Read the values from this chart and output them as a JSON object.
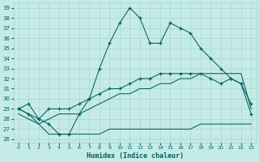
{
  "xlabel": "Humidex (Indice chaleur)",
  "xlim": [
    -0.5,
    23.5
  ],
  "ylim": [
    25.7,
    39.5
  ],
  "yticks": [
    26,
    27,
    28,
    29,
    30,
    31,
    32,
    33,
    34,
    35,
    36,
    37,
    38,
    39
  ],
  "xticks": [
    0,
    1,
    2,
    3,
    4,
    5,
    6,
    7,
    8,
    9,
    10,
    11,
    12,
    13,
    14,
    15,
    16,
    17,
    18,
    19,
    20,
    21,
    22,
    23
  ],
  "bg_color": "#c5ebe7",
  "grid_color": "#a0d0cb",
  "line_color": "#006060",
  "line1_y": [
    29.0,
    29.5,
    28.0,
    27.5,
    26.5,
    26.5,
    28.5,
    30.0,
    33.0,
    35.5,
    37.5,
    39.0,
    38.0,
    35.5,
    35.5,
    37.5,
    37.0,
    36.5,
    35.0,
    34.0,
    33.0,
    32.0,
    31.5,
    28.5
  ],
  "line2_y": [
    29.0,
    28.5,
    28.0,
    29.0,
    29.0,
    29.0,
    29.5,
    30.0,
    30.5,
    31.0,
    31.0,
    31.5,
    32.0,
    32.0,
    32.5,
    32.5,
    32.5,
    32.5,
    32.5,
    32.0,
    31.5,
    32.0,
    31.5,
    29.5
  ],
  "line3_y": [
    28.5,
    28.0,
    27.5,
    28.0,
    28.5,
    28.5,
    28.5,
    29.0,
    29.5,
    30.0,
    30.5,
    30.5,
    31.0,
    31.0,
    31.5,
    31.5,
    32.0,
    32.0,
    32.5,
    32.5,
    32.5,
    32.5,
    32.5,
    29.0
  ],
  "line4_y": [
    29.0,
    28.5,
    27.5,
    26.5,
    26.5,
    26.5,
    26.5,
    26.5,
    26.5,
    27.0,
    27.0,
    27.0,
    27.0,
    27.0,
    27.0,
    27.0,
    27.0,
    27.0,
    27.5,
    27.5,
    27.5,
    27.5,
    27.5,
    27.5
  ]
}
